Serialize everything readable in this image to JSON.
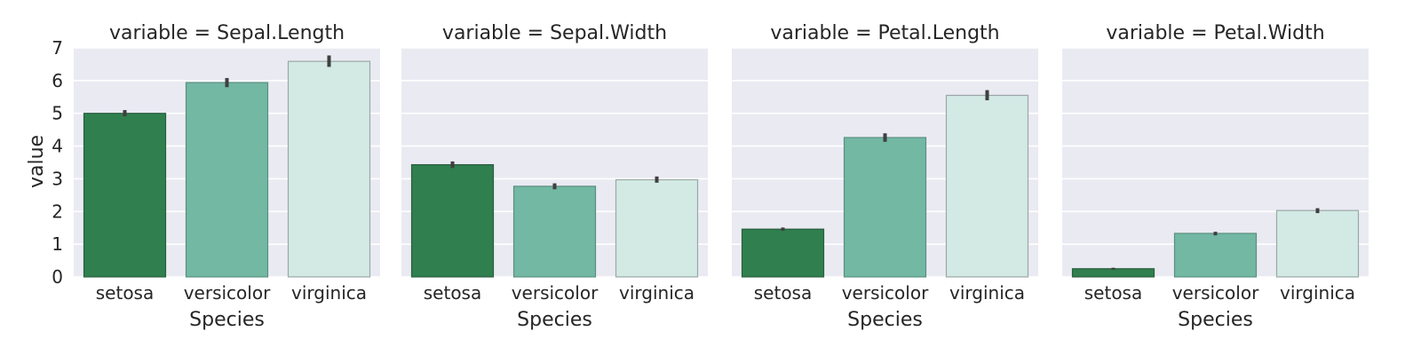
{
  "chart_data": {
    "type": "bar",
    "ylabel": "value",
    "ylim": [
      0,
      7
    ],
    "yticks": [
      "0",
      "1",
      "2",
      "3",
      "4",
      "5",
      "6",
      "7"
    ],
    "xlabel": "Species",
    "categories": [
      "setosa",
      "versicolor",
      "virginica"
    ],
    "colors": [
      "#2F7F4F",
      "#72B8A3",
      "#D2E9E4"
    ],
    "edge_colors": [
      "#2A5E3E",
      "#5A8F80",
      "#9AA8A6"
    ],
    "grid": true,
    "panels": [
      {
        "title": "variable = Sepal.Length",
        "values": [
          5.0,
          5.94,
          6.59
        ],
        "ci": [
          [
            4.91,
            5.1
          ],
          [
            5.8,
            6.08
          ],
          [
            6.42,
            6.77
          ]
        ]
      },
      {
        "title": "variable = Sepal.Width",
        "values": [
          3.43,
          2.77,
          2.97
        ],
        "ci": [
          [
            3.33,
            3.53
          ],
          [
            2.68,
            2.86
          ],
          [
            2.88,
            3.07
          ]
        ]
      },
      {
        "title": "variable = Petal.Length",
        "values": [
          1.46,
          4.26,
          5.55
        ],
        "ci": [
          [
            1.41,
            1.51
          ],
          [
            4.13,
            4.39
          ],
          [
            5.4,
            5.71
          ]
        ]
      },
      {
        "title": "variable = Petal.Width",
        "values": [
          0.25,
          1.33,
          2.03
        ],
        "ci": [
          [
            0.22,
            0.28
          ],
          [
            1.27,
            1.38
          ],
          [
            1.95,
            2.1
          ]
        ]
      }
    ]
  }
}
